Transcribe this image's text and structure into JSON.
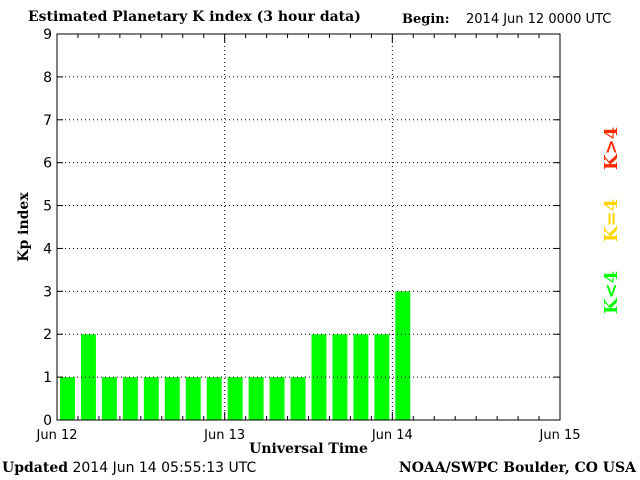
{
  "header": {
    "title": "Estimated Planetary K index (3 hour data)",
    "begin_label": "Begin:",
    "begin_value": "2014 Jun 12 0000 UTC"
  },
  "footer": {
    "updated_label": "Updated",
    "updated_value": "2014 Jun 14 05:55:13 UTC",
    "credit": "NOAA/SWPC Boulder, CO USA"
  },
  "legend": {
    "k_greater": "K>4",
    "k_equal": "K=4",
    "k_less": "K<4"
  },
  "colors": {
    "bar": "#00ff00",
    "k_greater": "#ff2a00",
    "k_equal": "#ffd400",
    "k_less": "#00ff00",
    "grid": "#000000"
  },
  "chart_data": {
    "type": "bar",
    "title": "Estimated Planetary K index (3 hour data)",
    "xlabel": "Universal Time",
    "ylabel": "Kp index",
    "ylim": [
      0,
      9
    ],
    "yticks": [
      "0",
      "1",
      "2",
      "3",
      "4",
      "5",
      "6",
      "7",
      "8",
      "9"
    ],
    "xticks": [
      "Jun 12",
      "Jun 13",
      "Jun 14",
      "Jun 15"
    ],
    "grid": true,
    "x_interval_hours": 3,
    "values": [
      1,
      2,
      1,
      1,
      1,
      1,
      1,
      1,
      1,
      1,
      1,
      1,
      2,
      2,
      2,
      2,
      3
    ]
  }
}
